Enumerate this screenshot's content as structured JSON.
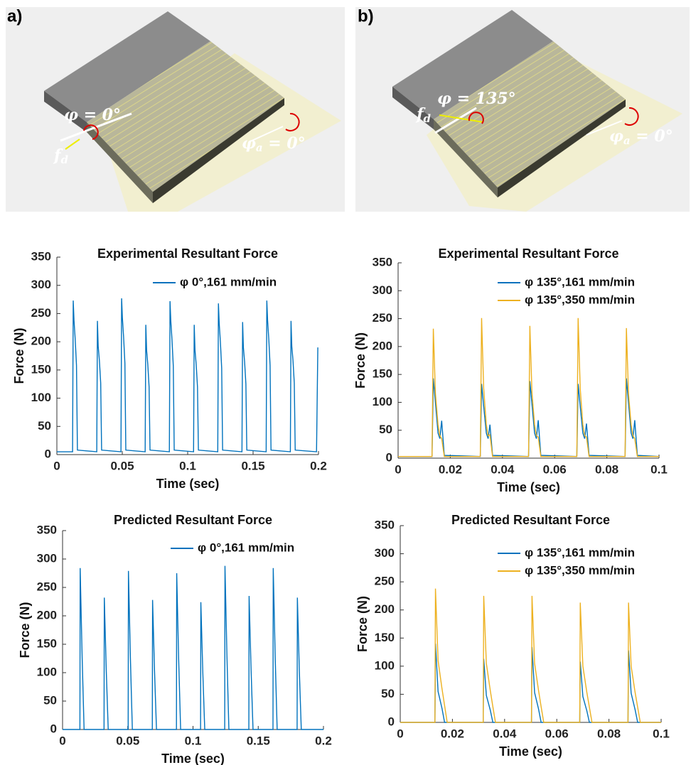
{
  "panels": [
    {
      "label": "a)",
      "angle_text": "φ = 0°",
      "force_symbol": "f",
      "force_subscript": "d",
      "angle_a_symbol": "φ",
      "angle_a_subscript": "a",
      "angle_a_value": " = 0°"
    },
    {
      "label": "b)",
      "angle_text": "φ = 135°",
      "force_symbol": "f",
      "force_subscript": "d",
      "angle_a_symbol": "φ",
      "angle_a_subscript": "a",
      "angle_a_value": " = 0°"
    }
  ],
  "chart_data": [
    {
      "type": "line",
      "title": "Experimental Resultant Force",
      "x_label": "Time (sec)",
      "y_label": "Force (N)",
      "xlim": [
        0,
        0.2
      ],
      "xticks": [
        0,
        0.05,
        0.1,
        0.15,
        0.2
      ],
      "ylim": [
        0,
        350
      ],
      "yticks": [
        0,
        50,
        100,
        150,
        200,
        250,
        300,
        350
      ],
      "x": [
        0,
        0.012,
        0.0125,
        0.0131,
        0.014,
        0.015,
        0.0157,
        0.0305,
        0.031,
        0.0316,
        0.0325,
        0.0335,
        0.0342,
        0.049,
        0.0495,
        0.0501,
        0.051,
        0.052,
        0.0527,
        0.0675,
        0.068,
        0.0686,
        0.0695,
        0.0705,
        0.0712,
        0.086,
        0.0865,
        0.0871,
        0.088,
        0.089,
        0.0897,
        0.1045,
        0.105,
        0.1056,
        0.1065,
        0.1075,
        0.1082,
        0.123,
        0.1235,
        0.1241,
        0.125,
        0.126,
        0.1267,
        0.1415,
        0.142,
        0.1426,
        0.1435,
        0.1445,
        0.1452,
        0.16,
        0.1605,
        0.1611,
        0.162,
        0.163,
        0.1637,
        0.1785,
        0.179,
        0.1796,
        0.1805,
        0.1815,
        0.1822,
        0.1985,
        0.1995
      ],
      "series": [
        {
          "name": "φ 0°,161 mm/min",
          "color": "#0072bd",
          "values": [
            5,
            5,
            273,
            238,
            205,
            158,
            8,
            5,
            237,
            192,
            167,
            127,
            8,
            5,
            277,
            242,
            209,
            162,
            8,
            5,
            230,
            185,
            160,
            120,
            8,
            5,
            272,
            237,
            204,
            157,
            8,
            5,
            230,
            185,
            160,
            120,
            8,
            5,
            268,
            233,
            200,
            153,
            8,
            5,
            235,
            190,
            165,
            125,
            8,
            5,
            273,
            238,
            205,
            158,
            8,
            5,
            237,
            192,
            167,
            127,
            8,
            5,
            190
          ]
        }
      ]
    },
    {
      "type": "line",
      "title": "Experimental Resultant Force",
      "x_label": "Time (sec)",
      "y_label": "Force (N)",
      "xlim": [
        0,
        0.1
      ],
      "xticks": [
        0,
        0.02,
        0.04,
        0.06,
        0.08,
        0.1
      ],
      "ylim": [
        0,
        350
      ],
      "yticks": [
        0,
        50,
        100,
        150,
        200,
        250,
        300,
        350
      ],
      "x": [
        0,
        0.013,
        0.0135,
        0.0143,
        0.0153,
        0.016,
        0.0167,
        0.0177,
        0.0315,
        0.032,
        0.0328,
        0.0338,
        0.0345,
        0.0352,
        0.0362,
        0.05,
        0.0505,
        0.0513,
        0.0523,
        0.053,
        0.0537,
        0.0547,
        0.0685,
        0.069,
        0.0698,
        0.0708,
        0.0715,
        0.0722,
        0.0732,
        0.087,
        0.0875,
        0.0883,
        0.0893,
        0.09,
        0.0907,
        0.0917,
        0.1
      ],
      "series": [
        {
          "name": "φ 135°,161 mm/min",
          "color": "#0072bd",
          "values": [
            3,
            3,
            143,
            100,
            45,
            35,
            67,
            5,
            3,
            133,
            93,
            45,
            35,
            60,
            5,
            3,
            138,
            97,
            45,
            35,
            68,
            5,
            3,
            133,
            93,
            45,
            35,
            62,
            5,
            3,
            143,
            100,
            45,
            35,
            68,
            5,
            3
          ]
        },
        {
          "name": "φ 135°,350 mm/min",
          "color": "#edb120",
          "values": [
            3,
            3,
            232,
            116,
            60,
            40,
            35,
            3,
            3,
            251,
            125,
            60,
            40,
            42,
            3,
            3,
            237,
            118,
            60,
            40,
            38,
            3,
            3,
            251,
            125,
            60,
            40,
            38,
            3,
            3,
            233,
            116,
            60,
            40,
            35,
            3,
            3
          ]
        }
      ]
    },
    {
      "type": "line",
      "title": "Predicted Resultant Force",
      "x_label": "Time (sec)",
      "y_label": "Force (N)",
      "xlim": [
        0,
        0.2
      ],
      "xticks": [
        0,
        0.05,
        0.1,
        0.15,
        0.2
      ],
      "ylim": [
        0,
        350
      ],
      "yticks": [
        0,
        50,
        100,
        150,
        200,
        250,
        300,
        350
      ],
      "x": [
        0,
        0.0133,
        0.0135,
        0.015,
        0.0165,
        0.0318,
        0.032,
        0.0335,
        0.035,
        0.0503,
        0.0505,
        0.052,
        0.0535,
        0.0688,
        0.069,
        0.0705,
        0.072,
        0.0873,
        0.0875,
        0.089,
        0.0905,
        0.1058,
        0.106,
        0.1075,
        0.109,
        0.1243,
        0.1245,
        0.126,
        0.1275,
        0.1428,
        0.143,
        0.1445,
        0.146,
        0.1613,
        0.1615,
        0.163,
        0.1645,
        0.1798,
        0.18,
        0.1815,
        0.183,
        0.2
      ],
      "series": [
        {
          "name": "φ 0°,161 mm/min",
          "color": "#0072bd",
          "values": [
            0,
            0,
            284,
            128,
            0,
            0,
            232,
            104,
            0,
            0,
            279,
            126,
            0,
            0,
            228,
            103,
            0,
            0,
            275,
            124,
            0,
            0,
            224,
            101,
            0,
            0,
            288,
            130,
            0,
            0,
            235,
            106,
            0,
            0,
            284,
            128,
            0,
            0,
            232,
            104,
            0,
            0
          ]
        }
      ]
    },
    {
      "type": "line",
      "title": "Predicted Resultant Force",
      "x_label": "Time (sec)",
      "y_label": "Force (N)",
      "xlim": [
        0,
        0.1
      ],
      "xticks": [
        0,
        0.02,
        0.04,
        0.06,
        0.08,
        0.1
      ],
      "ylim": [
        0,
        350
      ],
      "yticks": [
        0,
        50,
        100,
        150,
        200,
        250,
        300,
        350
      ],
      "x": [
        0,
        0.0133,
        0.0135,
        0.0145,
        0.016,
        0.017,
        0.018,
        0.0318,
        0.032,
        0.033,
        0.0345,
        0.0355,
        0.0365,
        0.0503,
        0.0505,
        0.0515,
        0.053,
        0.054,
        0.055,
        0.0688,
        0.069,
        0.07,
        0.0715,
        0.0725,
        0.0735,
        0.0873,
        0.0875,
        0.0885,
        0.09,
        0.091,
        0.092,
        0.1
      ],
      "series": [
        {
          "name": "φ 135°,161 mm/min",
          "color": "#0072bd",
          "values": [
            0,
            0,
            140,
            55,
            25,
            0,
            0,
            0,
            113,
            48,
            22,
            0,
            0,
            0,
            134,
            53,
            24,
            0,
            0,
            0,
            108,
            46,
            21,
            0,
            0,
            0,
            128,
            52,
            23,
            0,
            0,
            0
          ]
        },
        {
          "name": "φ 135°,350 mm/min",
          "color": "#edb120",
          "values": [
            0,
            0,
            238,
            110,
            60,
            30,
            0,
            0,
            225,
            105,
            57,
            28,
            0,
            0,
            225,
            105,
            57,
            28,
            0,
            0,
            213,
            100,
            54,
            27,
            0,
            0,
            213,
            100,
            54,
            27,
            0,
            0
          ]
        }
      ]
    }
  ]
}
